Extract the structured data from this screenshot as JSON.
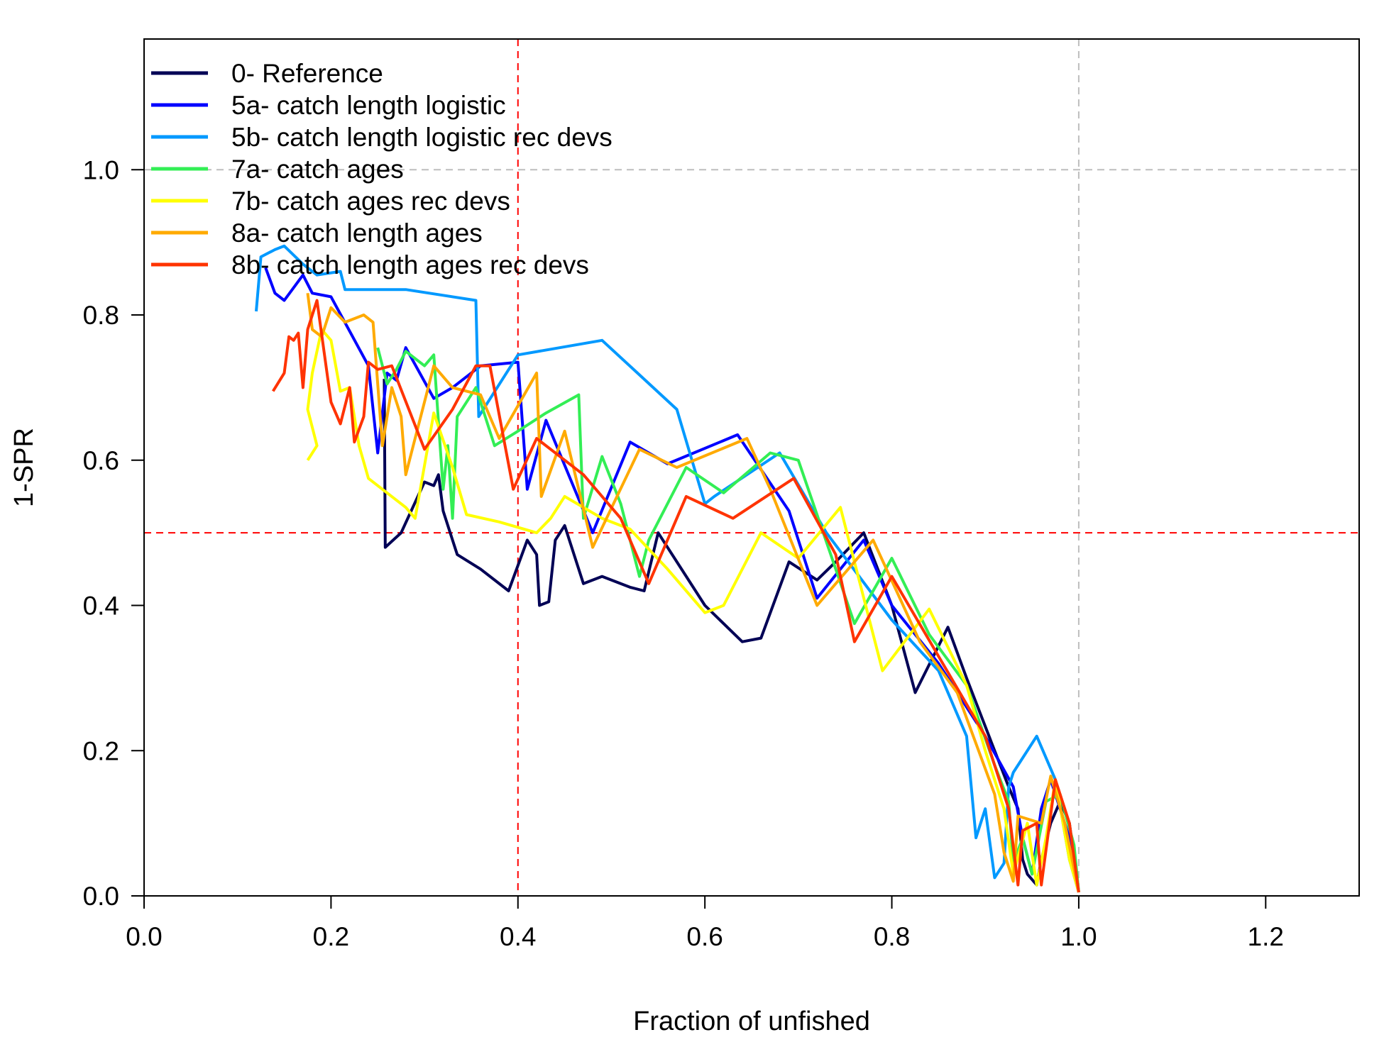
{
  "chart_data": {
    "type": "line",
    "xlabel": "Fraction of unfished",
    "ylabel": "1-SPR",
    "xlim": [
      0,
      1.3
    ],
    "ylim": [
      0,
      1.18
    ],
    "xticks": [
      "0.0",
      "0.2",
      "0.4",
      "0.6",
      "0.8",
      "1.0",
      "1.2"
    ],
    "xtick_values": [
      0,
      0.2,
      0.4,
      0.6,
      0.8,
      1.0,
      1.2
    ],
    "yticks": [
      "0.0",
      "0.2",
      "0.4",
      "0.6",
      "0.8",
      "1.0"
    ],
    "ytick_values": [
      0,
      0.2,
      0.4,
      0.6,
      0.8,
      1.0
    ],
    "legend_position": "top-left",
    "reference_lines": [
      {
        "axis": "x",
        "value": 0.4,
        "color": "#ff0000",
        "style": "dashed"
      },
      {
        "axis": "y",
        "value": 0.5,
        "color": "#ff0000",
        "style": "dashed"
      },
      {
        "axis": "x",
        "value": 1.0,
        "color": "#bebebe",
        "style": "dashed"
      },
      {
        "axis": "y",
        "value": 1.0,
        "color": "#bebebe",
        "style": "dashed"
      }
    ],
    "series": [
      {
        "name": "0- Reference",
        "color": "#000055",
        "points": [
          [
            0.257,
            0.712
          ],
          [
            0.258,
            0.48
          ],
          [
            0.275,
            0.5
          ],
          [
            0.3,
            0.57
          ],
          [
            0.31,
            0.565
          ],
          [
            0.315,
            0.58
          ],
          [
            0.32,
            0.53
          ],
          [
            0.335,
            0.47
          ],
          [
            0.36,
            0.45
          ],
          [
            0.39,
            0.42
          ],
          [
            0.41,
            0.49
          ],
          [
            0.42,
            0.47
          ],
          [
            0.423,
            0.4
          ],
          [
            0.433,
            0.405
          ],
          [
            0.44,
            0.49
          ],
          [
            0.45,
            0.51
          ],
          [
            0.47,
            0.43
          ],
          [
            0.49,
            0.44
          ],
          [
            0.52,
            0.425
          ],
          [
            0.535,
            0.42
          ],
          [
            0.55,
            0.5
          ],
          [
            0.6,
            0.4
          ],
          [
            0.64,
            0.35
          ],
          [
            0.66,
            0.355
          ],
          [
            0.69,
            0.46
          ],
          [
            0.72,
            0.435
          ],
          [
            0.74,
            0.46
          ],
          [
            0.77,
            0.5
          ],
          [
            0.8,
            0.4
          ],
          [
            0.825,
            0.28
          ],
          [
            0.86,
            0.37
          ],
          [
            0.88,
            0.3
          ],
          [
            0.91,
            0.2
          ],
          [
            0.925,
            0.15
          ],
          [
            0.935,
            0.12
          ],
          [
            0.94,
            0.05
          ],
          [
            0.945,
            0.03
          ],
          [
            0.955,
            0.015
          ],
          [
            0.96,
            0.05
          ],
          [
            0.97,
            0.1
          ],
          [
            0.98,
            0.13
          ],
          [
            0.99,
            0.1
          ],
          [
            1.0,
            0.005
          ]
        ]
      },
      {
        "name": "5a- catch length logistic",
        "color": "#0000ff",
        "points": [
          [
            0.13,
            0.865
          ],
          [
            0.14,
            0.83
          ],
          [
            0.15,
            0.82
          ],
          [
            0.17,
            0.855
          ],
          [
            0.18,
            0.83
          ],
          [
            0.2,
            0.825
          ],
          [
            0.24,
            0.73
          ],
          [
            0.25,
            0.61
          ],
          [
            0.26,
            0.72
          ],
          [
            0.27,
            0.71
          ],
          [
            0.28,
            0.755
          ],
          [
            0.31,
            0.685
          ],
          [
            0.33,
            0.7
          ],
          [
            0.36,
            0.73
          ],
          [
            0.4,
            0.735
          ],
          [
            0.41,
            0.56
          ],
          [
            0.43,
            0.655
          ],
          [
            0.48,
            0.5
          ],
          [
            0.52,
            0.625
          ],
          [
            0.56,
            0.595
          ],
          [
            0.635,
            0.635
          ],
          [
            0.69,
            0.53
          ],
          [
            0.72,
            0.41
          ],
          [
            0.77,
            0.49
          ],
          [
            0.8,
            0.4
          ],
          [
            0.85,
            0.32
          ],
          [
            0.9,
            0.22
          ],
          [
            0.93,
            0.15
          ],
          [
            0.94,
            0.08
          ],
          [
            0.95,
            0.03
          ],
          [
            0.96,
            0.12
          ],
          [
            0.97,
            0.16
          ],
          [
            0.99,
            0.08
          ],
          [
            1.0,
            0.005
          ]
        ]
      },
      {
        "name": "5b- catch length logistic rec devs",
        "color": "#0099ff",
        "points": [
          [
            0.12,
            0.805
          ],
          [
            0.125,
            0.88
          ],
          [
            0.14,
            0.89
          ],
          [
            0.15,
            0.895
          ],
          [
            0.17,
            0.87
          ],
          [
            0.185,
            0.855
          ],
          [
            0.21,
            0.86
          ],
          [
            0.215,
            0.835
          ],
          [
            0.22,
            0.835
          ],
          [
            0.28,
            0.835
          ],
          [
            0.355,
            0.82
          ],
          [
            0.358,
            0.66
          ],
          [
            0.4,
            0.745
          ],
          [
            0.49,
            0.765
          ],
          [
            0.57,
            0.67
          ],
          [
            0.6,
            0.54
          ],
          [
            0.61,
            0.55
          ],
          [
            0.68,
            0.61
          ],
          [
            0.73,
            0.5
          ],
          [
            0.8,
            0.38
          ],
          [
            0.85,
            0.31
          ],
          [
            0.88,
            0.22
          ],
          [
            0.89,
            0.08
          ],
          [
            0.9,
            0.12
          ],
          [
            0.91,
            0.025
          ],
          [
            0.92,
            0.045
          ],
          [
            0.925,
            0.15
          ],
          [
            0.93,
            0.17
          ],
          [
            0.955,
            0.22
          ],
          [
            0.975,
            0.16
          ],
          [
            0.99,
            0.05
          ],
          [
            1.0,
            0.005
          ]
        ]
      },
      {
        "name": "7a- catch ages",
        "color": "#33ee55",
        "points": [
          [
            0.25,
            0.755
          ],
          [
            0.26,
            0.705
          ],
          [
            0.27,
            0.725
          ],
          [
            0.28,
            0.75
          ],
          [
            0.3,
            0.73
          ],
          [
            0.31,
            0.745
          ],
          [
            0.32,
            0.56
          ],
          [
            0.325,
            0.62
          ],
          [
            0.33,
            0.52
          ],
          [
            0.335,
            0.66
          ],
          [
            0.355,
            0.7
          ],
          [
            0.375,
            0.62
          ],
          [
            0.4,
            0.64
          ],
          [
            0.43,
            0.665
          ],
          [
            0.465,
            0.69
          ],
          [
            0.47,
            0.52
          ],
          [
            0.49,
            0.605
          ],
          [
            0.51,
            0.54
          ],
          [
            0.53,
            0.44
          ],
          [
            0.54,
            0.49
          ],
          [
            0.58,
            0.59
          ],
          [
            0.62,
            0.555
          ],
          [
            0.67,
            0.61
          ],
          [
            0.7,
            0.6
          ],
          [
            0.76,
            0.375
          ],
          [
            0.8,
            0.465
          ],
          [
            0.84,
            0.36
          ],
          [
            0.88,
            0.29
          ],
          [
            0.91,
            0.18
          ],
          [
            0.925,
            0.13
          ],
          [
            0.93,
            0.045
          ],
          [
            0.94,
            0.08
          ],
          [
            0.95,
            0.03
          ],
          [
            0.965,
            0.13
          ],
          [
            0.98,
            0.14
          ],
          [
            0.995,
            0.07
          ],
          [
            1.0,
            0.005
          ]
        ]
      },
      {
        "name": "7b- catch ages rec devs",
        "color": "#ffff00",
        "points": [
          [
            0.175,
            0.6
          ],
          [
            0.185,
            0.62
          ],
          [
            0.175,
            0.67
          ],
          [
            0.18,
            0.72
          ],
          [
            0.19,
            0.78
          ],
          [
            0.2,
            0.765
          ],
          [
            0.21,
            0.695
          ],
          [
            0.22,
            0.7
          ],
          [
            0.23,
            0.62
          ],
          [
            0.24,
            0.575
          ],
          [
            0.28,
            0.535
          ],
          [
            0.29,
            0.52
          ],
          [
            0.31,
            0.665
          ],
          [
            0.33,
            0.59
          ],
          [
            0.345,
            0.525
          ],
          [
            0.38,
            0.515
          ],
          [
            0.42,
            0.5
          ],
          [
            0.435,
            0.52
          ],
          [
            0.45,
            0.55
          ],
          [
            0.49,
            0.52
          ],
          [
            0.52,
            0.505
          ],
          [
            0.56,
            0.45
          ],
          [
            0.6,
            0.39
          ],
          [
            0.62,
            0.4
          ],
          [
            0.66,
            0.5
          ],
          [
            0.7,
            0.465
          ],
          [
            0.745,
            0.535
          ],
          [
            0.79,
            0.31
          ],
          [
            0.84,
            0.395
          ],
          [
            0.88,
            0.29
          ],
          [
            0.9,
            0.2
          ],
          [
            0.92,
            0.12
          ],
          [
            0.93,
            0.03
          ],
          [
            0.945,
            0.1
          ],
          [
            0.955,
            0.015
          ],
          [
            0.965,
            0.08
          ],
          [
            0.975,
            0.16
          ],
          [
            0.99,
            0.05
          ],
          [
            1.0,
            0.005
          ]
        ]
      },
      {
        "name": "8a- catch length ages",
        "color": "#ffaa00",
        "points": [
          [
            0.175,
            0.83
          ],
          [
            0.18,
            0.78
          ],
          [
            0.19,
            0.77
          ],
          [
            0.2,
            0.81
          ],
          [
            0.215,
            0.79
          ],
          [
            0.235,
            0.8
          ],
          [
            0.245,
            0.79
          ],
          [
            0.255,
            0.62
          ],
          [
            0.265,
            0.7
          ],
          [
            0.275,
            0.66
          ],
          [
            0.28,
            0.58
          ],
          [
            0.31,
            0.73
          ],
          [
            0.33,
            0.7
          ],
          [
            0.36,
            0.69
          ],
          [
            0.38,
            0.63
          ],
          [
            0.42,
            0.72
          ],
          [
            0.425,
            0.55
          ],
          [
            0.45,
            0.64
          ],
          [
            0.48,
            0.48
          ],
          [
            0.53,
            0.615
          ],
          [
            0.57,
            0.59
          ],
          [
            0.645,
            0.63
          ],
          [
            0.67,
            0.56
          ],
          [
            0.72,
            0.4
          ],
          [
            0.78,
            0.49
          ],
          [
            0.83,
            0.35
          ],
          [
            0.87,
            0.28
          ],
          [
            0.91,
            0.14
          ],
          [
            0.92,
            0.06
          ],
          [
            0.93,
            0.02
          ],
          [
            0.935,
            0.11
          ],
          [
            0.96,
            0.1
          ],
          [
            0.97,
            0.165
          ],
          [
            0.985,
            0.1
          ],
          [
            1.0,
            0.005
          ]
        ]
      },
      {
        "name": "8b- catch length ages rec devs",
        "color": "#ff3300",
        "points": [
          [
            0.138,
            0.695
          ],
          [
            0.15,
            0.72
          ],
          [
            0.155,
            0.77
          ],
          [
            0.16,
            0.765
          ],
          [
            0.165,
            0.775
          ],
          [
            0.17,
            0.7
          ],
          [
            0.175,
            0.78
          ],
          [
            0.185,
            0.82
          ],
          [
            0.2,
            0.68
          ],
          [
            0.21,
            0.65
          ],
          [
            0.22,
            0.7
          ],
          [
            0.225,
            0.625
          ],
          [
            0.235,
            0.66
          ],
          [
            0.24,
            0.735
          ],
          [
            0.245,
            0.73
          ],
          [
            0.25,
            0.725
          ],
          [
            0.265,
            0.73
          ],
          [
            0.3,
            0.615
          ],
          [
            0.33,
            0.67
          ],
          [
            0.355,
            0.73
          ],
          [
            0.37,
            0.73
          ],
          [
            0.395,
            0.56
          ],
          [
            0.42,
            0.63
          ],
          [
            0.47,
            0.58
          ],
          [
            0.51,
            0.52
          ],
          [
            0.54,
            0.43
          ],
          [
            0.58,
            0.55
          ],
          [
            0.63,
            0.52
          ],
          [
            0.695,
            0.575
          ],
          [
            0.74,
            0.47
          ],
          [
            0.76,
            0.35
          ],
          [
            0.8,
            0.44
          ],
          [
            0.85,
            0.33
          ],
          [
            0.9,
            0.22
          ],
          [
            0.925,
            0.12
          ],
          [
            0.935,
            0.015
          ],
          [
            0.94,
            0.09
          ],
          [
            0.955,
            0.1
          ],
          [
            0.96,
            0.015
          ],
          [
            0.975,
            0.16
          ],
          [
            0.99,
            0.1
          ],
          [
            1.0,
            0.005
          ]
        ]
      }
    ]
  }
}
